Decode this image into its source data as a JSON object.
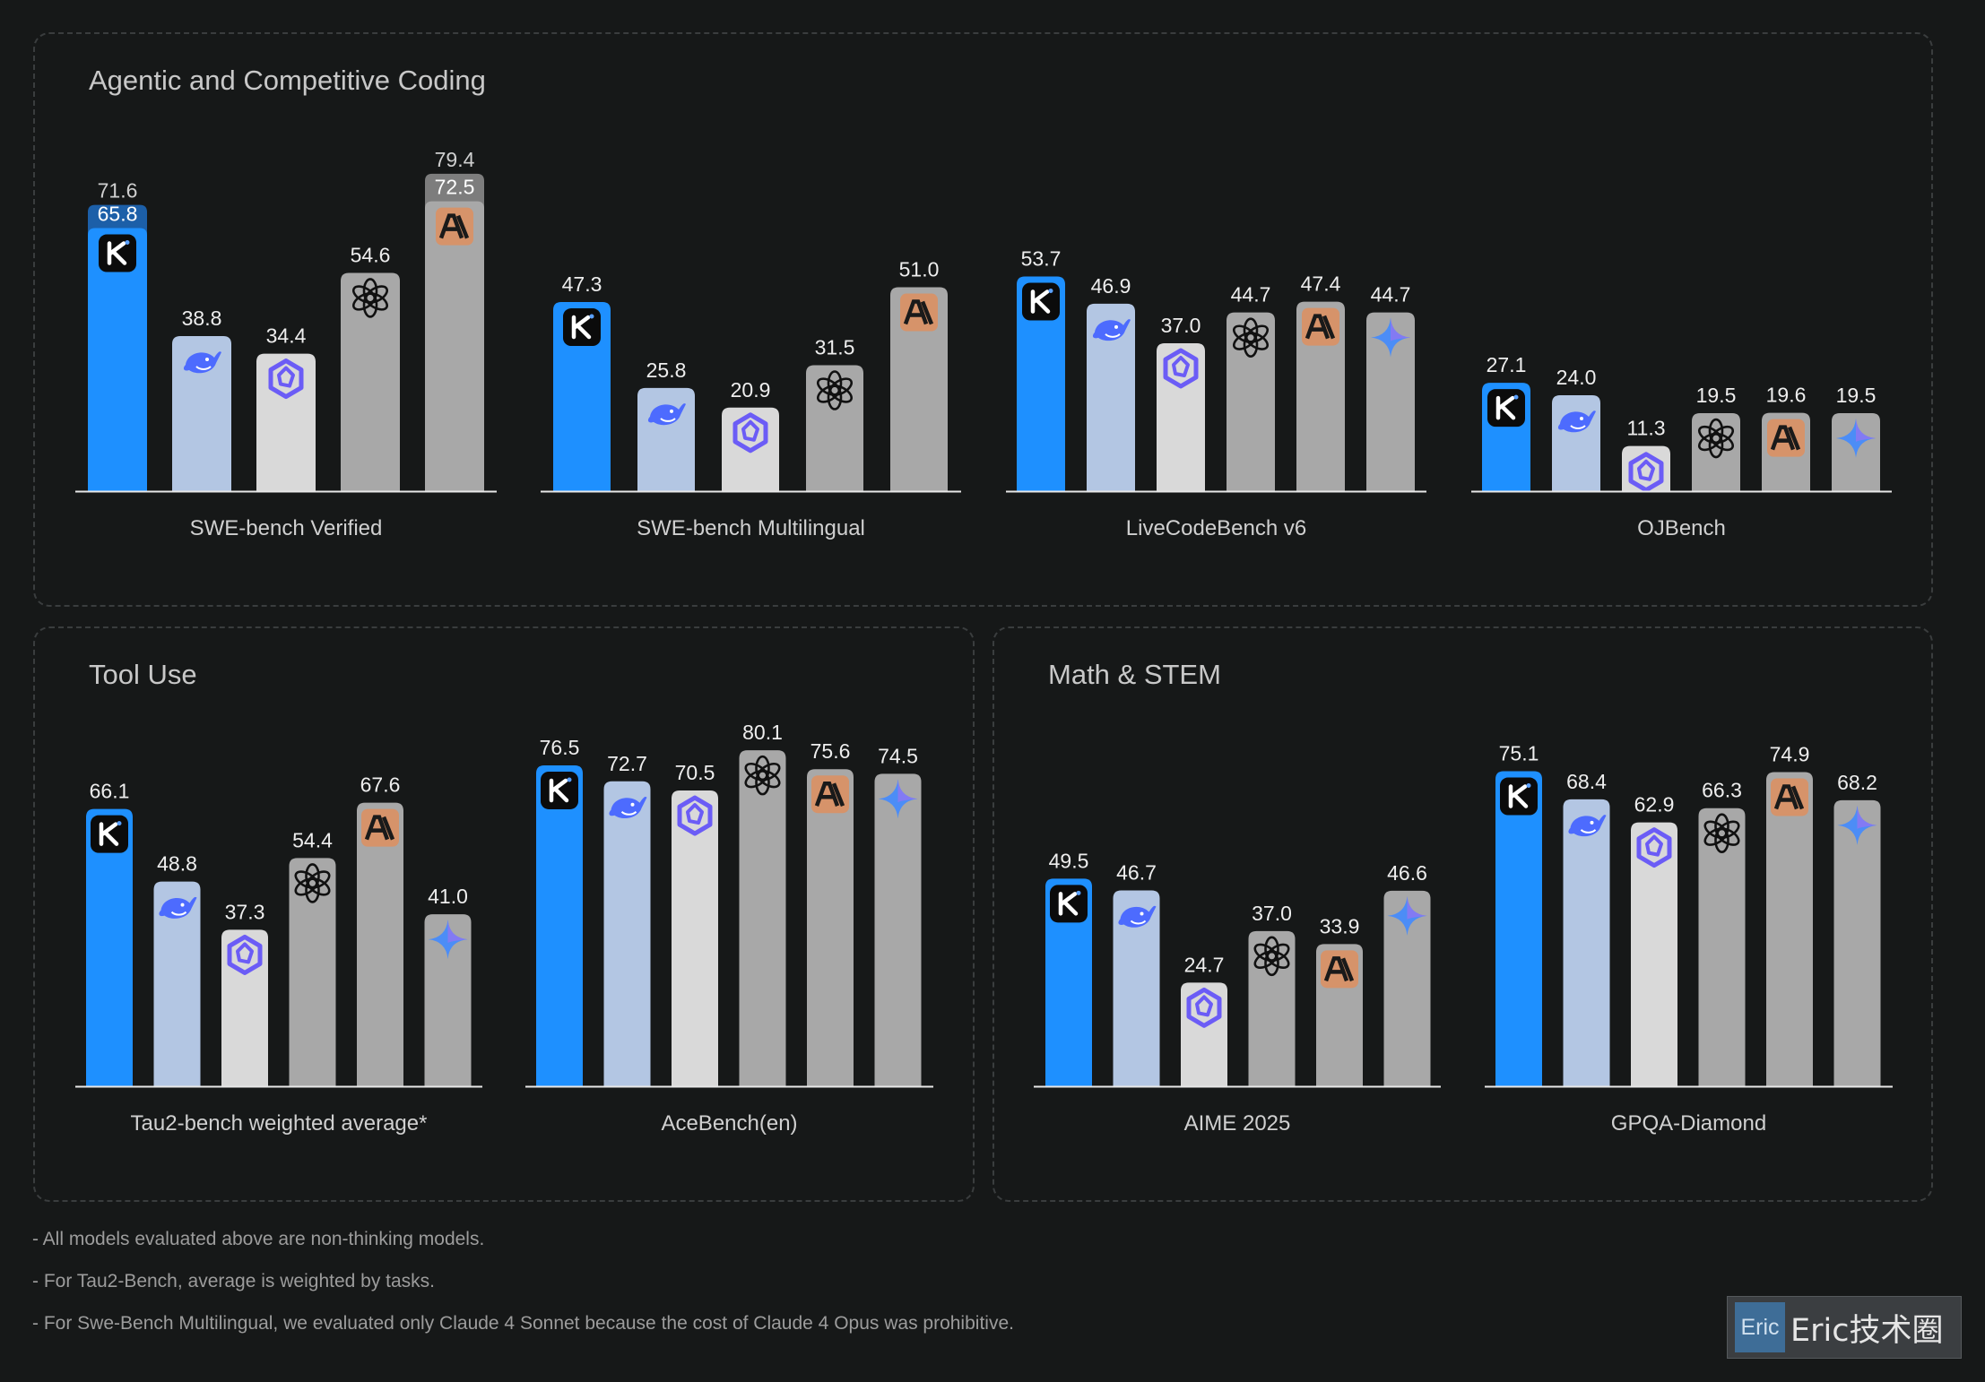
{
  "panels": [
    {
      "id": "coding",
      "title": "Agentic and Competitive Coding"
    },
    {
      "id": "tool",
      "title": "Tool Use"
    },
    {
      "id": "math",
      "title": "Math & STEM"
    }
  ],
  "legend_models": [
    {
      "model": "kimi",
      "icon": "kimi-icon",
      "color": "#1e90ff"
    },
    {
      "model": "deepseek",
      "icon": "deepseek-whale-icon",
      "color": "#b3c6e3"
    },
    {
      "model": "qwen",
      "icon": "qwen-icon",
      "color": "#d9d9d9"
    },
    {
      "model": "openai",
      "icon": "openai-icon",
      "color": "#a8a8a8"
    },
    {
      "model": "anthropic",
      "icon": "anthropic-icon",
      "color": "#a8a8a8"
    },
    {
      "model": "gemini",
      "icon": "gemini-star-icon",
      "color": "#a8a8a8"
    }
  ],
  "chart_data": [
    {
      "type": "bar",
      "panel": "coding",
      "category": "SWE-bench Verified",
      "ylim": [
        0,
        100
      ],
      "bars": [
        {
          "model": "kimi",
          "value": 65.8,
          "stacked_value": 71.6
        },
        {
          "model": "deepseek",
          "value": 38.8
        },
        {
          "model": "qwen",
          "value": 34.4
        },
        {
          "model": "openai",
          "value": 54.6
        },
        {
          "model": "anthropic",
          "value": 72.5,
          "stacked_value": 79.4
        }
      ]
    },
    {
      "type": "bar",
      "panel": "coding",
      "category": "SWE-bench Multilingual",
      "ylim": [
        0,
        100
      ],
      "bars": [
        {
          "model": "kimi",
          "value": 47.3
        },
        {
          "model": "deepseek",
          "value": 25.8
        },
        {
          "model": "qwen",
          "value": 20.9
        },
        {
          "model": "openai",
          "value": 31.5
        },
        {
          "model": "anthropic",
          "value": 51.0
        }
      ]
    },
    {
      "type": "bar",
      "panel": "coding",
      "category": "LiveCodeBench v6",
      "ylim": [
        0,
        100
      ],
      "bars": [
        {
          "model": "kimi",
          "value": 53.7
        },
        {
          "model": "deepseek",
          "value": 46.9
        },
        {
          "model": "qwen",
          "value": 37.0
        },
        {
          "model": "openai",
          "value": 44.7
        },
        {
          "model": "anthropic",
          "value": 47.4
        },
        {
          "model": "gemini",
          "value": 44.7
        }
      ]
    },
    {
      "type": "bar",
      "panel": "coding",
      "category": "OJBench",
      "ylim": [
        0,
        100
      ],
      "bars": [
        {
          "model": "kimi",
          "value": 27.1
        },
        {
          "model": "deepseek",
          "value": 24.0
        },
        {
          "model": "qwen",
          "value": 11.3
        },
        {
          "model": "openai",
          "value": 19.5
        },
        {
          "model": "anthropic",
          "value": 19.6
        },
        {
          "model": "gemini",
          "value": 19.5
        }
      ]
    },
    {
      "type": "bar",
      "panel": "tool",
      "category": "Tau2-bench weighted average*",
      "ylim": [
        0,
        100
      ],
      "bars": [
        {
          "model": "kimi",
          "value": 66.1
        },
        {
          "model": "deepseek",
          "value": 48.8
        },
        {
          "model": "qwen",
          "value": 37.3
        },
        {
          "model": "openai",
          "value": 54.4
        },
        {
          "model": "anthropic",
          "value": 67.6
        },
        {
          "model": "gemini",
          "value": 41.0
        }
      ]
    },
    {
      "type": "bar",
      "panel": "tool",
      "category": "AceBench(en)",
      "ylim": [
        0,
        100
      ],
      "bars": [
        {
          "model": "kimi",
          "value": 76.5
        },
        {
          "model": "deepseek",
          "value": 72.7
        },
        {
          "model": "qwen",
          "value": 70.5
        },
        {
          "model": "openai",
          "value": 80.1
        },
        {
          "model": "anthropic",
          "value": 75.6
        },
        {
          "model": "gemini",
          "value": 74.5
        }
      ]
    },
    {
      "type": "bar",
      "panel": "math",
      "category": "AIME 2025",
      "ylim": [
        0,
        100
      ],
      "bars": [
        {
          "model": "kimi",
          "value": 49.5
        },
        {
          "model": "deepseek",
          "value": 46.7
        },
        {
          "model": "qwen",
          "value": 24.7
        },
        {
          "model": "openai",
          "value": 37.0
        },
        {
          "model": "anthropic",
          "value": 33.9
        },
        {
          "model": "gemini",
          "value": 46.6
        }
      ]
    },
    {
      "type": "bar",
      "panel": "math",
      "category": "GPQA-Diamond",
      "ylim": [
        0,
        100
      ],
      "bars": [
        {
          "model": "kimi",
          "value": 75.1
        },
        {
          "model": "deepseek",
          "value": 68.4
        },
        {
          "model": "qwen",
          "value": 62.9
        },
        {
          "model": "openai",
          "value": 66.3
        },
        {
          "model": "anthropic",
          "value": 74.9
        },
        {
          "model": "gemini",
          "value": 68.2
        }
      ]
    }
  ],
  "notes": [
    "- All models evaluated above are non-thinking models.",
    "- For Tau2-Bench, average is weighted by tasks.",
    "- For Swe-Bench Multilingual, we evaluated only Claude 4 Sonnet because the cost of Claude 4 Opus was prohibitive."
  ],
  "watermark": {
    "logo_text": "Eric",
    "text": "Eric技术圈"
  }
}
